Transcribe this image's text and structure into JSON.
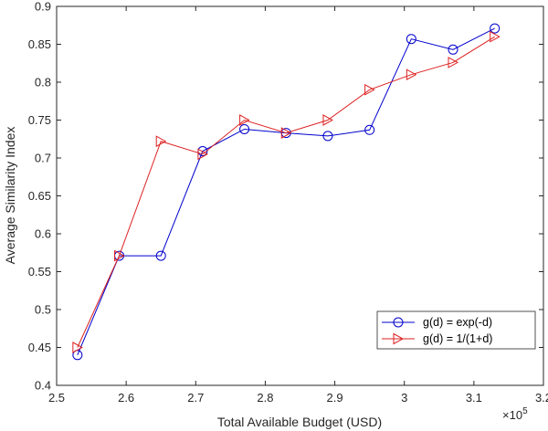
{
  "chart_data": {
    "type": "line",
    "xlabel": "Total Available Budget (USD)",
    "ylabel": "Average Similarity Index",
    "x_exponent_label": "×10",
    "x_exponent_power": "5",
    "xlim": [
      2.5,
      3.2
    ],
    "ylim": [
      0.4,
      0.9
    ],
    "x_ticks": [
      "2.5",
      "2.6",
      "2.7",
      "2.8",
      "2.9",
      "3",
      "3.1",
      "3.2"
    ],
    "y_ticks": [
      "0.4",
      "0.45",
      "0.5",
      "0.55",
      "0.6",
      "0.65",
      "0.7",
      "0.75",
      "0.8",
      "0.85",
      "0.9"
    ],
    "grid": false,
    "legend_position": "bottom-right",
    "x": [
      2.53,
      2.59,
      2.65,
      2.71,
      2.77,
      2.83,
      2.89,
      2.95,
      3.01,
      3.07,
      3.13
    ],
    "series": [
      {
        "name": "g(d) = exp(-d)",
        "color": "#0000cc",
        "marker": "circle",
        "values": [
          0.44,
          0.571,
          0.571,
          0.709,
          0.738,
          0.733,
          0.729,
          0.737,
          0.857,
          0.843,
          0.871
        ]
      },
      {
        "name": "g(d) = 1/(1+d)",
        "color": "#dd2222",
        "marker": "triangle-right",
        "values": [
          0.45,
          0.571,
          0.722,
          0.705,
          0.75,
          0.733,
          0.75,
          0.79,
          0.81,
          0.826,
          0.86
        ]
      }
    ]
  }
}
